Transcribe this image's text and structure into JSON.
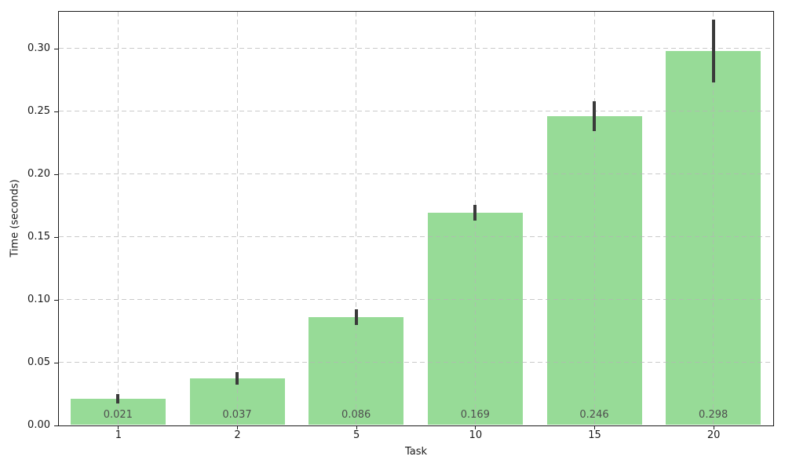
{
  "chart_data": {
    "type": "bar",
    "title": "",
    "xlabel": "Task",
    "ylabel": "Time (seconds)",
    "categories": [
      "1",
      "2",
      "5",
      "10",
      "15",
      "20"
    ],
    "values": [
      0.021,
      0.037,
      0.086,
      0.169,
      0.246,
      0.298
    ],
    "errors": [
      0.004,
      0.005,
      0.0065,
      0.0065,
      0.012,
      0.025
    ],
    "bar_labels": [
      "0.021",
      "0.037",
      "0.086",
      "0.169",
      "0.246",
      "0.298"
    ],
    "yticks": [
      0.0,
      0.05,
      0.1,
      0.15,
      0.2,
      0.25,
      0.3
    ],
    "ytick_labels": [
      "0.00",
      "0.05",
      "0.10",
      "0.15",
      "0.20",
      "0.25",
      "0.30"
    ],
    "ylim": [
      0,
      0.3295
    ],
    "grid": "dashed-both-axes-above-bars",
    "legend": "none",
    "colors": {
      "bar_fill": "#97DB97",
      "error_bar": "#3A3A3A",
      "grid_line": "#B4B4B4",
      "axis_line": "#1A1A1A",
      "tick_label": "#1A1A1A",
      "bar_label": "#4F4F4F",
      "background": "#FFFFFF"
    }
  }
}
